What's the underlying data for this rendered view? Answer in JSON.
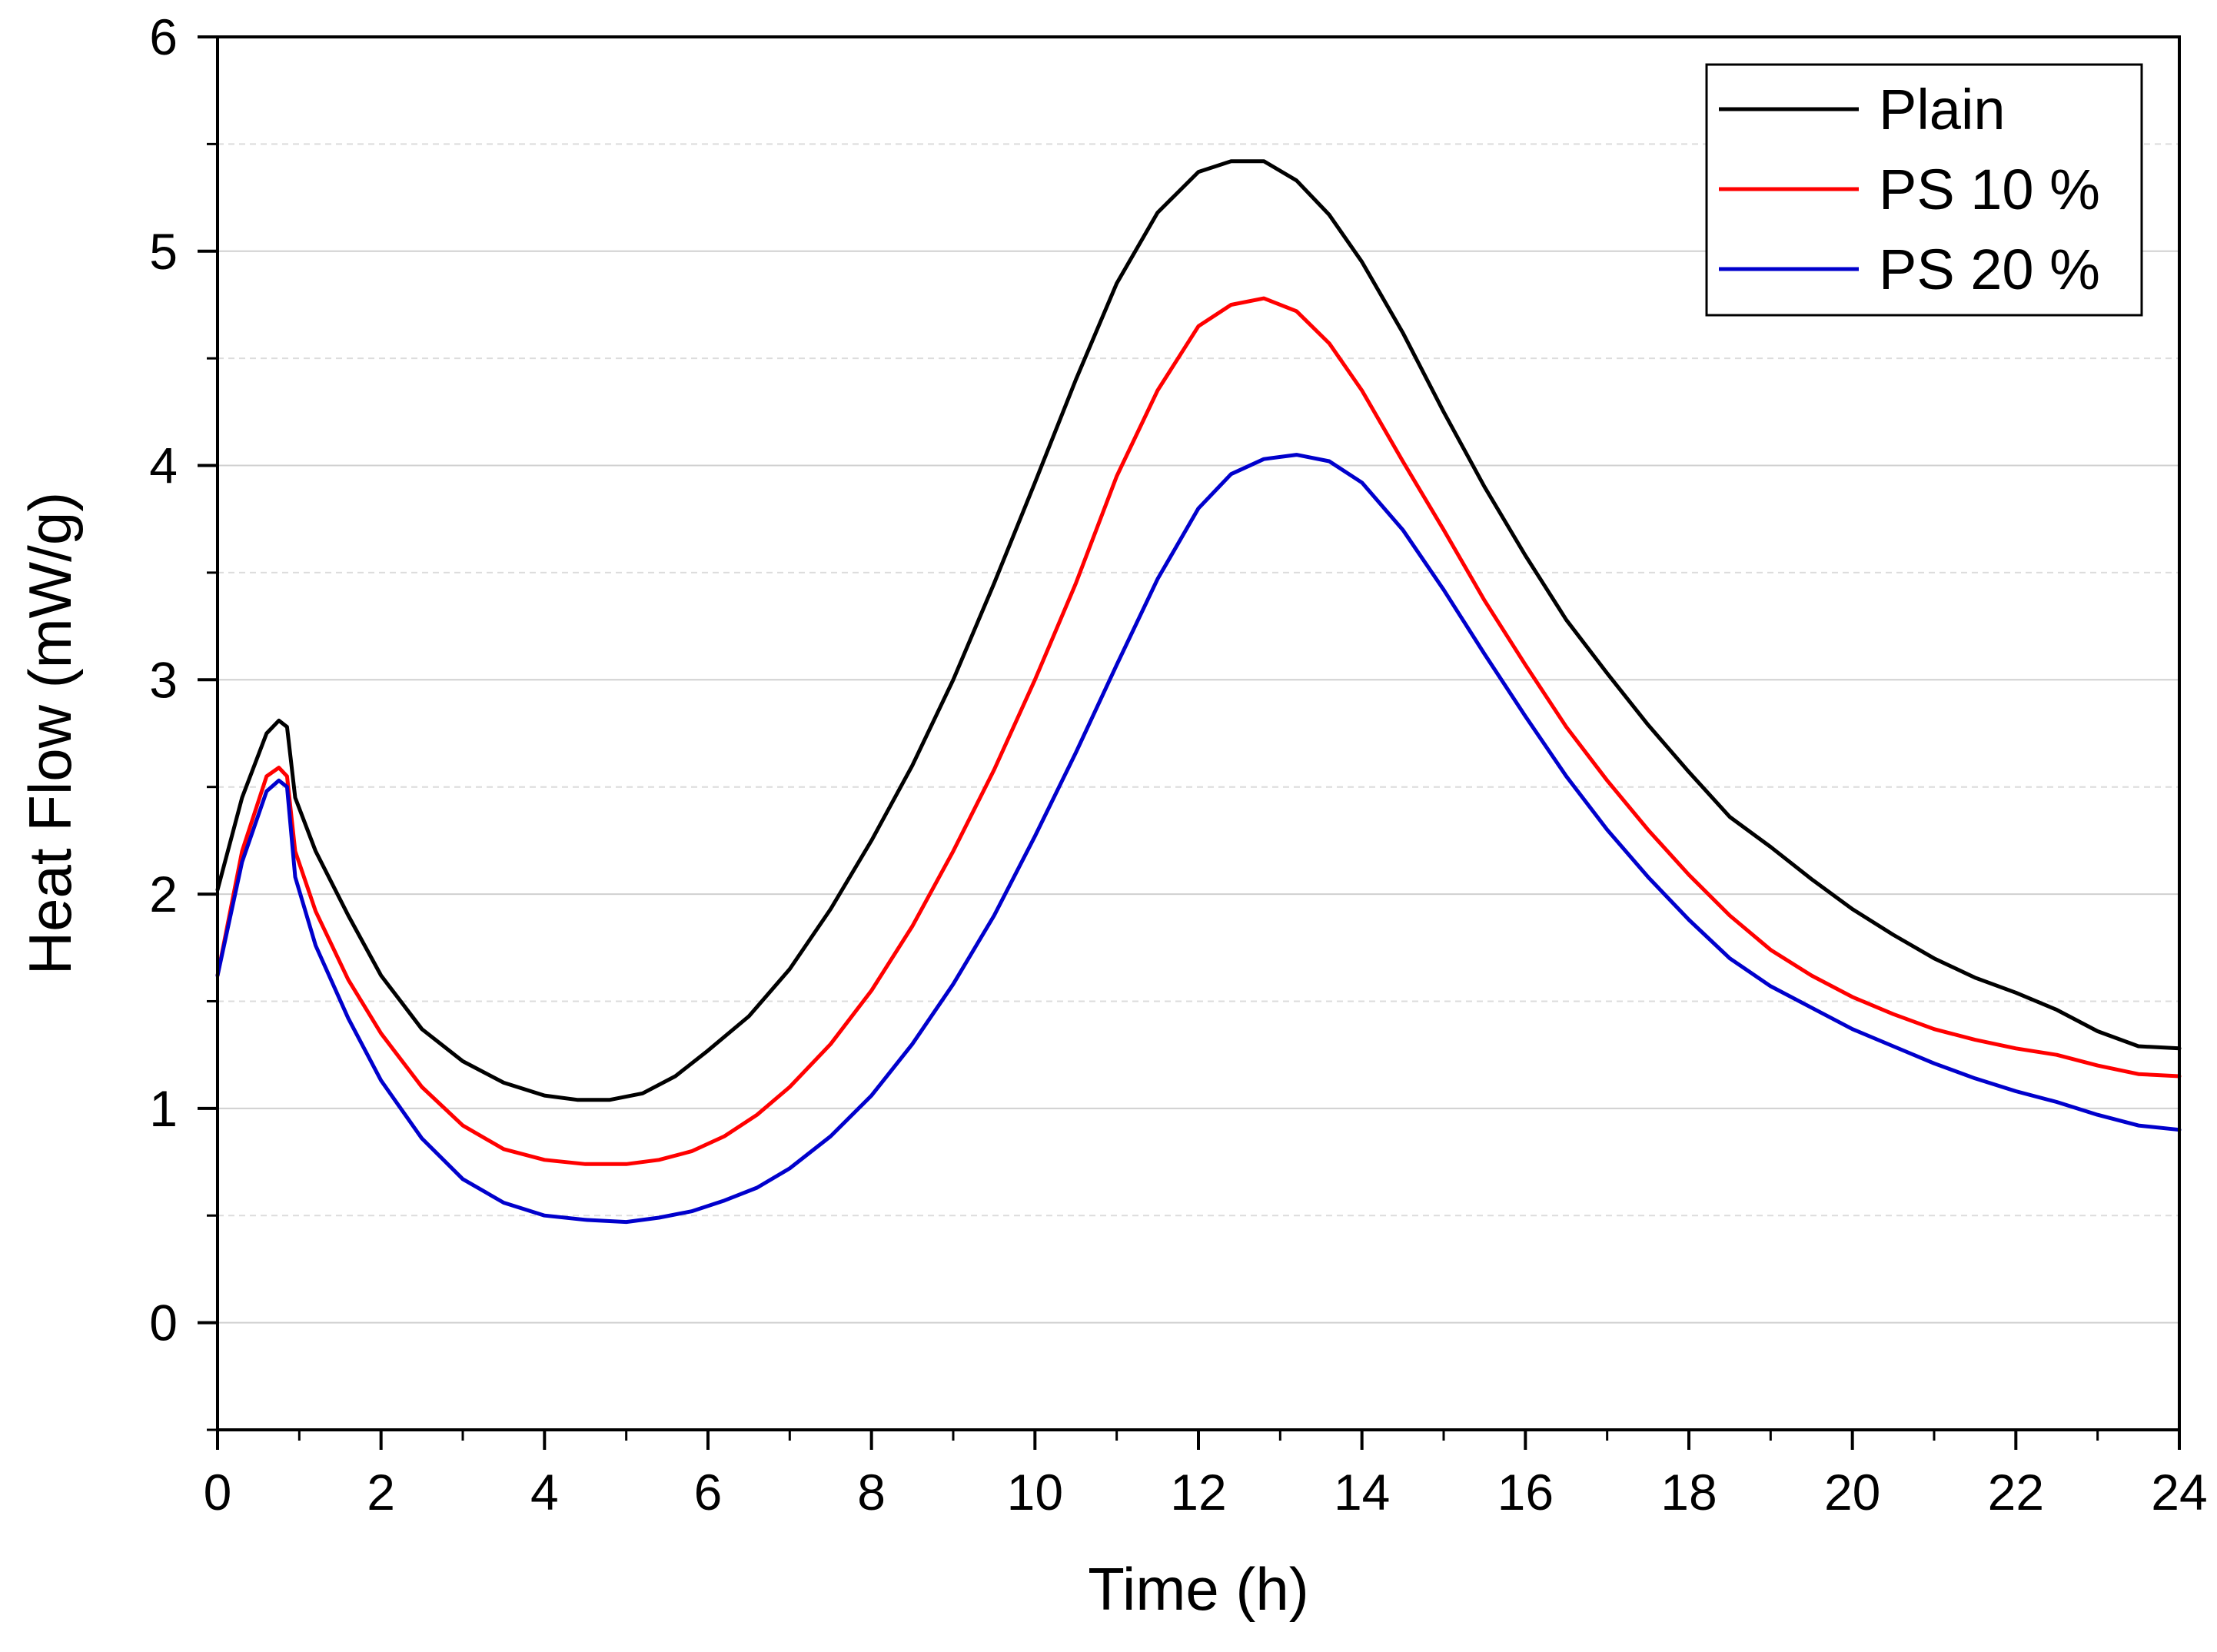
{
  "chart_data": {
    "type": "line",
    "xlabel": "Time (h)",
    "ylabel": "Heat Flow (mW/g)",
    "xlim": [
      0,
      24
    ],
    "ylim": [
      -0.5,
      6
    ],
    "x_ticks": [
      "0",
      "2",
      "4",
      "6",
      "8",
      "10",
      "12",
      "14",
      "16",
      "18",
      "20",
      "22",
      "24"
    ],
    "y_ticks": [
      "0",
      "1",
      "2",
      "3",
      "4",
      "5",
      "6"
    ],
    "grid": true,
    "legend_position": "top-right",
    "series": [
      {
        "name": "Plain",
        "color": "#000000",
        "x": [
          0,
          0.3,
          0.6,
          0.75,
          0.85,
          0.95,
          1.2,
          1.6,
          2.0,
          2.5,
          3.0,
          3.5,
          4.0,
          4.4,
          4.8,
          5.2,
          5.6,
          6.0,
          6.5,
          7.0,
          7.5,
          8.0,
          8.5,
          9.0,
          9.5,
          10.0,
          10.5,
          11.0,
          11.5,
          12.0,
          12.4,
          12.8,
          13.2,
          13.6,
          14.0,
          14.5,
          15.0,
          15.5,
          16.0,
          16.5,
          17.0,
          17.5,
          18.0,
          18.5,
          19.0,
          19.5,
          20.0,
          20.5,
          21.0,
          21.5,
          22.0,
          22.5,
          23.0,
          23.5,
          24.0
        ],
        "y": [
          2.02,
          2.45,
          2.75,
          2.81,
          2.78,
          2.45,
          2.2,
          1.9,
          1.62,
          1.37,
          1.22,
          1.12,
          1.06,
          1.04,
          1.04,
          1.07,
          1.15,
          1.27,
          1.43,
          1.65,
          1.93,
          2.25,
          2.6,
          3.0,
          3.45,
          3.92,
          4.4,
          4.85,
          5.18,
          5.37,
          5.42,
          5.42,
          5.33,
          5.17,
          4.95,
          4.62,
          4.25,
          3.9,
          3.58,
          3.28,
          3.03,
          2.79,
          2.57,
          2.36,
          2.22,
          2.07,
          1.93,
          1.81,
          1.7,
          1.61,
          1.54,
          1.46,
          1.36,
          1.29,
          1.28
        ]
      },
      {
        "name": "PS 10 %",
        "color": "#ff0000",
        "x": [
          0,
          0.3,
          0.6,
          0.75,
          0.85,
          0.95,
          1.2,
          1.6,
          2.0,
          2.5,
          3.0,
          3.5,
          4.0,
          4.5,
          5.0,
          5.4,
          5.8,
          6.2,
          6.6,
          7.0,
          7.5,
          8.0,
          8.5,
          9.0,
          9.5,
          10.0,
          10.5,
          11.0,
          11.5,
          12.0,
          12.4,
          12.8,
          13.2,
          13.6,
          14.0,
          14.5,
          15.0,
          15.5,
          16.0,
          16.5,
          17.0,
          17.5,
          18.0,
          18.5,
          19.0,
          19.5,
          20.0,
          20.5,
          21.0,
          21.5,
          22.0,
          22.5,
          23.0,
          23.5,
          24.0
        ],
        "y": [
          1.62,
          2.2,
          2.55,
          2.59,
          2.55,
          2.2,
          1.92,
          1.6,
          1.35,
          1.1,
          0.92,
          0.81,
          0.76,
          0.74,
          0.74,
          0.76,
          0.8,
          0.87,
          0.97,
          1.1,
          1.3,
          1.55,
          1.85,
          2.2,
          2.58,
          3.0,
          3.45,
          3.95,
          4.35,
          4.65,
          4.75,
          4.78,
          4.72,
          4.57,
          4.35,
          4.02,
          3.7,
          3.37,
          3.07,
          2.78,
          2.53,
          2.3,
          2.09,
          1.9,
          1.74,
          1.62,
          1.52,
          1.44,
          1.37,
          1.32,
          1.28,
          1.25,
          1.2,
          1.16,
          1.15
        ]
      },
      {
        "name": "PS 20 %",
        "color": "#0000cc",
        "x": [
          0,
          0.3,
          0.6,
          0.75,
          0.85,
          0.95,
          1.2,
          1.6,
          2.0,
          2.5,
          3.0,
          3.5,
          4.0,
          4.5,
          5.0,
          5.4,
          5.8,
          6.2,
          6.6,
          7.0,
          7.5,
          8.0,
          8.5,
          9.0,
          9.5,
          10.0,
          10.5,
          11.0,
          11.5,
          12.0,
          12.4,
          12.8,
          13.2,
          13.6,
          14.0,
          14.5,
          15.0,
          15.5,
          16.0,
          16.5,
          17.0,
          17.5,
          18.0,
          18.5,
          19.0,
          19.5,
          20.0,
          20.5,
          21.0,
          21.5,
          22.0,
          22.5,
          23.0,
          23.5,
          24.0
        ],
        "y": [
          1.62,
          2.15,
          2.48,
          2.53,
          2.5,
          2.08,
          1.76,
          1.42,
          1.13,
          0.86,
          0.67,
          0.56,
          0.5,
          0.48,
          0.47,
          0.49,
          0.52,
          0.57,
          0.63,
          0.72,
          0.87,
          1.06,
          1.3,
          1.58,
          1.9,
          2.27,
          2.66,
          3.07,
          3.47,
          3.8,
          3.96,
          4.03,
          4.05,
          4.02,
          3.92,
          3.7,
          3.42,
          3.12,
          2.83,
          2.55,
          2.3,
          2.08,
          1.88,
          1.7,
          1.57,
          1.47,
          1.37,
          1.29,
          1.21,
          1.14,
          1.08,
          1.03,
          0.97,
          0.92,
          0.9
        ]
      }
    ]
  }
}
